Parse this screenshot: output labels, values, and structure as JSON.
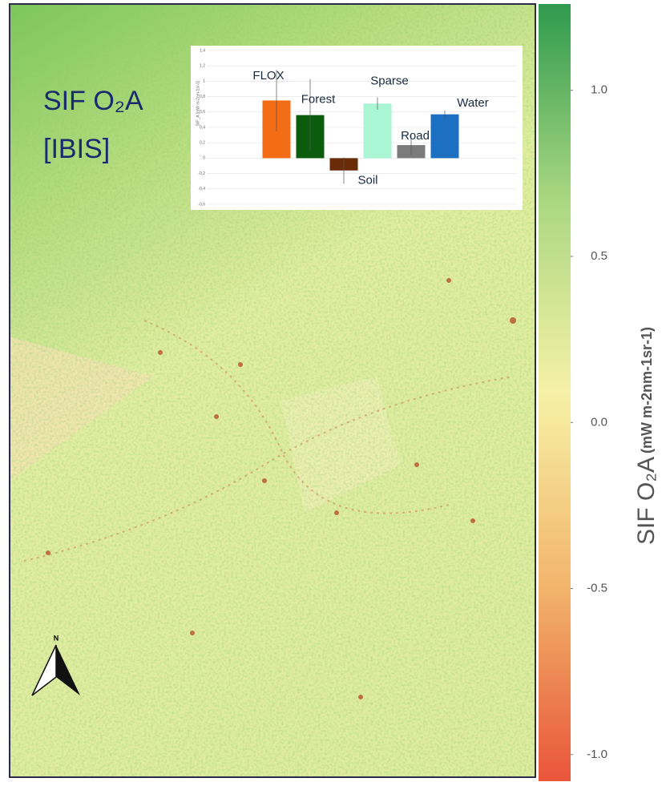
{
  "map": {
    "title": "SIF O₂A",
    "subtitle": "[IBIS]",
    "north_label": "N"
  },
  "chart_data": {
    "type": "bar",
    "y_label": "SIF_A [mW m-2nm-1sr-1]",
    "categories": [
      "FLOX",
      "Forest",
      "Soil",
      "Sparse",
      "Road",
      "Water"
    ],
    "values": [
      0.75,
      0.56,
      -0.16,
      0.71,
      0.17,
      0.57
    ],
    "errors": [
      0.4,
      0.47,
      0.17,
      0.08,
      0.13,
      0.05
    ],
    "colors": [
      "#f26d16",
      "#0b5d0d",
      "#6a2c08",
      "#aaf5d4",
      "#7b7b7b",
      "#1c6fc1"
    ],
    "ylim": [
      -0.6,
      1.4
    ],
    "yticks": [
      {
        "value": -0.6,
        "label": "-0,6"
      },
      {
        "value": -0.4,
        "label": "-0,4"
      },
      {
        "value": -0.2,
        "label": "-0,2"
      },
      0,
      {
        "value": 0.2,
        "label": "0,2"
      },
      {
        "value": 0.4,
        "label": "0,4"
      },
      {
        "value": 0.6,
        "label": "0,6"
      },
      {
        "value": 0.8,
        "label": "0,8"
      },
      1,
      {
        "value": 1.2,
        "label": "1,2"
      },
      {
        "value": 1.4,
        "label": "1,4"
      }
    ],
    "grid": true
  },
  "colorbar": {
    "label": "SIF O₂A",
    "unit": "(mW m-2nm-1sr-1)",
    "clim": [
      -1.08,
      1.26
    ],
    "colors": [
      "#e9553a",
      "#f2b56b",
      "#f6f1a6",
      "#a9d781",
      "#2e9a4e"
    ],
    "ticks": [
      {
        "value": 1,
        "label": "1.0"
      },
      {
        "value": 0.5,
        "label": "0.5"
      },
      {
        "value": 0,
        "label": "0.0"
      },
      {
        "value": -0.5,
        "label": "-0.5"
      },
      {
        "value": -1,
        "label": "-1.0"
      }
    ]
  }
}
